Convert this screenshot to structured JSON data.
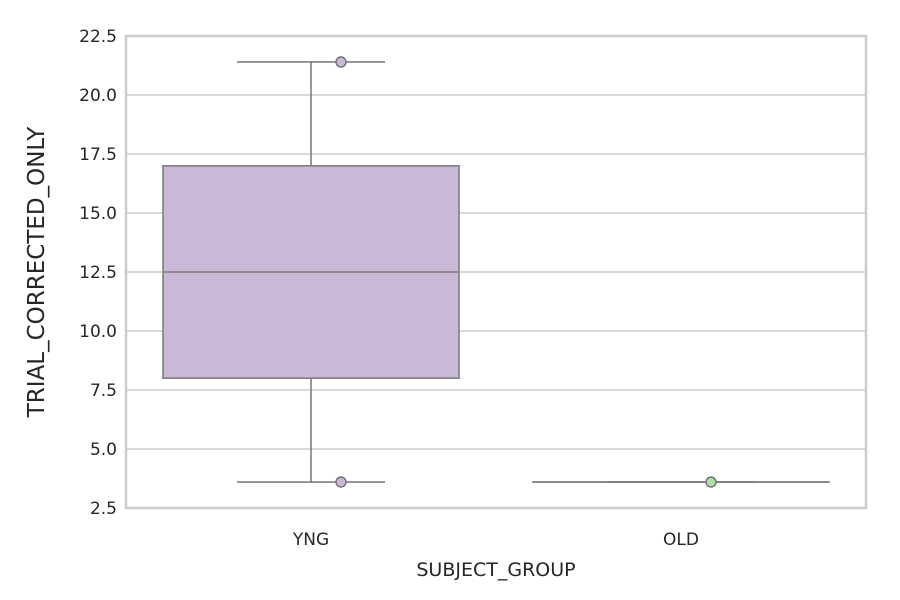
{
  "chart_data": {
    "type": "box",
    "title": "",
    "xlabel": "SUBJECT_GROUP",
    "ylabel": "TRIAL_CORRECTED_ONLY",
    "categories": [
      "YNG",
      "OLD"
    ],
    "ylim": [
      2.5,
      22.5
    ],
    "yticks": [
      "2.5",
      "5.0",
      "7.5",
      "10.0",
      "12.5",
      "15.0",
      "17.5",
      "20.0",
      "22.5"
    ],
    "grid": true,
    "boxes": [
      {
        "category": "YNG",
        "whisker_low": 3.6,
        "q1": 8.0,
        "median": 12.5,
        "q3": 17.0,
        "whisker_high": 21.4,
        "points": [
          21.4,
          3.6
        ],
        "color": "#cbb8d6",
        "point_color": "#cbb8d6"
      },
      {
        "category": "OLD",
        "whisker_low": 3.6,
        "q1": 3.6,
        "median": 3.6,
        "q3": 3.6,
        "whisker_high": 3.6,
        "points": [
          3.6
        ],
        "color": "#c7e3c0",
        "point_color": "#b3dbb0"
      }
    ],
    "line_color": "#7f7f7f",
    "grid_color": "#cccccc",
    "frame_color": "#cccccc"
  }
}
